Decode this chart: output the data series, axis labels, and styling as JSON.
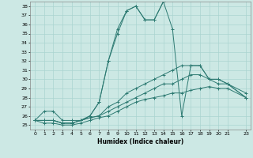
{
  "xlabel": "Humidex (Indice chaleur)",
  "background_color": "#cce8e4",
  "grid_color": "#aad4d0",
  "line_color": "#2d7a72",
  "xlim": [
    -0.5,
    23.5
  ],
  "ylim": [
    24.5,
    38.5
  ],
  "yticks": [
    25,
    26,
    27,
    28,
    29,
    30,
    31,
    32,
    33,
    34,
    35,
    36,
    37,
    38
  ],
  "xticks": [
    0,
    1,
    2,
    3,
    4,
    5,
    6,
    7,
    8,
    9,
    10,
    11,
    12,
    13,
    14,
    15,
    16,
    17,
    18,
    19,
    20,
    21,
    23
  ],
  "series": [
    {
      "x": [
        0,
        1,
        2,
        3,
        4,
        5,
        6,
        7,
        8,
        9,
        10,
        11,
        12,
        13,
        14
      ],
      "y": [
        25.5,
        26.5,
        26.5,
        25.5,
        25.5,
        25.5,
        26.0,
        27.5,
        32.0,
        35.0,
        37.5,
        38.0,
        36.5,
        36.5,
        38.5
      ]
    },
    {
      "x": [
        0,
        1,
        2,
        3,
        4,
        5,
        6,
        7,
        8,
        9,
        10,
        11,
        12,
        13,
        14,
        15,
        16,
        17,
        18,
        19,
        20,
        21,
        23
      ],
      "y": [
        25.5,
        25.5,
        25.5,
        25.2,
        25.2,
        25.5,
        26.0,
        27.5,
        32.0,
        35.5,
        37.5,
        38.0,
        36.5,
        36.5,
        38.5,
        35.5,
        26.0,
        31.5,
        31.5,
        30.0,
        30.0,
        29.5,
        28.0
      ]
    },
    {
      "x": [
        0,
        1,
        2,
        3,
        4,
        5,
        6,
        7,
        8,
        9,
        10,
        11,
        12,
        13,
        14,
        15,
        16,
        17,
        18,
        19,
        20,
        21,
        23
      ],
      "y": [
        25.5,
        25.5,
        25.5,
        25.2,
        25.2,
        25.5,
        25.8,
        26.0,
        27.0,
        27.5,
        28.5,
        29.0,
        29.5,
        30.0,
        30.5,
        31.0,
        31.5,
        31.5,
        31.5,
        30.0,
        30.0,
        29.5,
        28.0
      ]
    },
    {
      "x": [
        0,
        1,
        2,
        3,
        4,
        5,
        6,
        7,
        8,
        9,
        10,
        11,
        12,
        13,
        14,
        15,
        16,
        17,
        18,
        19,
        20,
        21,
        23
      ],
      "y": [
        25.5,
        25.5,
        25.5,
        25.2,
        25.2,
        25.5,
        25.8,
        26.0,
        26.5,
        27.0,
        27.5,
        28.0,
        28.5,
        29.0,
        29.5,
        29.5,
        30.0,
        30.5,
        30.5,
        30.0,
        29.5,
        29.5,
        28.5
      ]
    },
    {
      "x": [
        0,
        1,
        2,
        3,
        4,
        5,
        6,
        7,
        8,
        9,
        10,
        11,
        12,
        13,
        14,
        15,
        16,
        17,
        18,
        19,
        20,
        21,
        23
      ],
      "y": [
        25.5,
        25.2,
        25.2,
        25.0,
        25.0,
        25.2,
        25.5,
        25.8,
        26.0,
        26.5,
        27.0,
        27.5,
        27.8,
        28.0,
        28.2,
        28.5,
        28.5,
        28.8,
        29.0,
        29.2,
        29.0,
        29.0,
        28.0
      ]
    }
  ]
}
